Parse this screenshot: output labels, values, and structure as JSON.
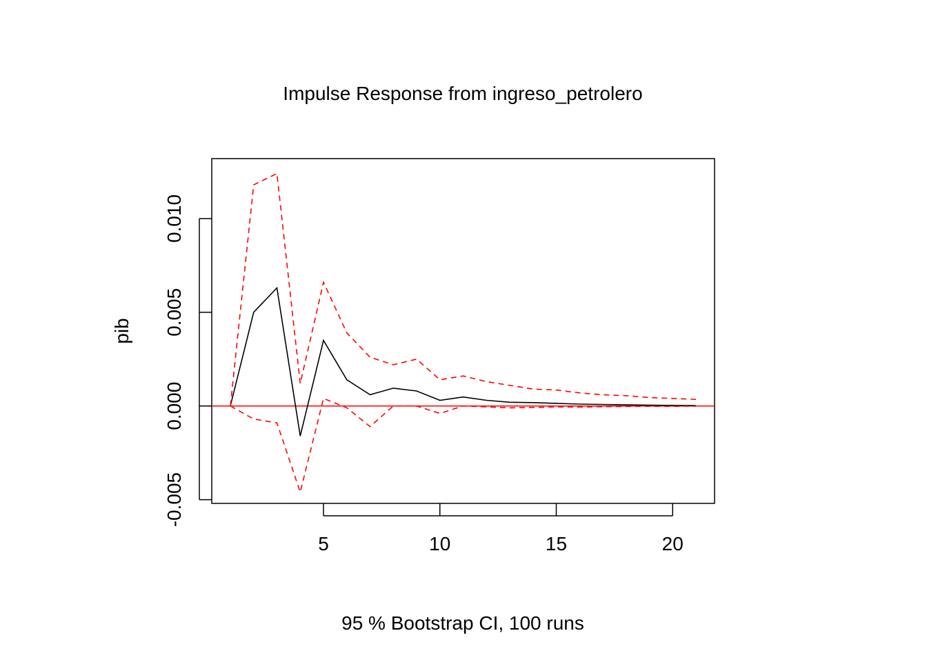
{
  "chart_data": {
    "type": "line",
    "title": "Impulse Response from ingreso_petrolero",
    "xlabel": "95 % Bootstrap CI,  100 runs",
    "ylabel": "pib",
    "xlim": [
      0.2,
      21.8
    ],
    "ylim": [
      -0.0052,
      0.0132
    ],
    "x_ticks": [
      5,
      10,
      15,
      20
    ],
    "x_tick_labels": [
      "5",
      "10",
      "15",
      "20"
    ],
    "y_ticks": [
      -0.005,
      0.0,
      0.005,
      0.01
    ],
    "y_tick_labels": [
      "-0.005",
      "0.000",
      "0.005",
      "0.010"
    ],
    "zero_line": {
      "value": 0,
      "color": "#ff0000"
    },
    "x": [
      1,
      2,
      3,
      4,
      5,
      6,
      7,
      8,
      9,
      10,
      11,
      12,
      13,
      14,
      15,
      16,
      17,
      18,
      19,
      20,
      21
    ],
    "series": [
      {
        "name": "irf",
        "color": "#000000",
        "dashed": false,
        "values": [
          0.0,
          0.005,
          0.0063,
          -0.0016,
          0.0035,
          0.0014,
          0.0006,
          0.00095,
          0.0008,
          0.0003,
          0.00048,
          0.0003,
          0.0002,
          0.00018,
          0.00014,
          0.0001,
          8e-05,
          6e-05,
          4e-05,
          3e-05,
          2e-05
        ]
      },
      {
        "name": "upper",
        "color": "#ff0000",
        "dashed": true,
        "values": [
          0.0,
          0.0118,
          0.0124,
          0.0012,
          0.0066,
          0.0039,
          0.0026,
          0.0022,
          0.0025,
          0.0014,
          0.0016,
          0.0013,
          0.0011,
          0.0009,
          0.00085,
          0.0007,
          0.0006,
          0.00055,
          0.00045,
          0.0004,
          0.00035
        ]
      },
      {
        "name": "lower",
        "color": "#ff0000",
        "dashed": true,
        "values": [
          0.0,
          -0.0007,
          -0.0009,
          -0.0046,
          0.0004,
          -0.0001,
          -0.0011,
          0.0,
          0.0,
          -0.0004,
          0.0,
          -5e-05,
          -0.0001,
          -8e-05,
          -5e-05,
          -6e-05,
          -4e-05,
          -3e-05,
          -2e-05,
          -2e-05,
          -1e-05
        ]
      }
    ]
  }
}
